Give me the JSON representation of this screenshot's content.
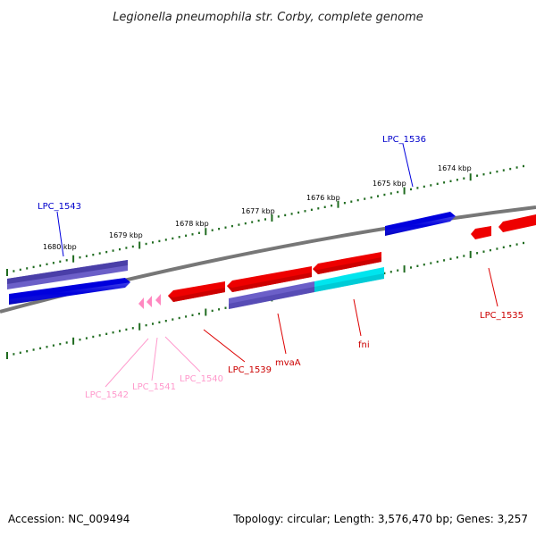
{
  "title": "Legionella pneumophila str. Corby, complete genome",
  "footer": {
    "accession": "Accession: NC_009494",
    "summary": "Topology: circular; Length: 3,576,470 bp; Genes: 3,257"
  },
  "colors": {
    "backbone": "#7a7a7a",
    "tick": "#1f6b1f",
    "forward_gene": "#0000dd",
    "forward_gene_alt": "#6b5fc8",
    "reverse_gene": "#ee0000",
    "pseudo_gene": "#ff88c0",
    "cyan_gene": "#00e5ee"
  },
  "scale_labels": [
    {
      "id": "kbp-1680",
      "text": "1680 kbp"
    },
    {
      "id": "kbp-1679",
      "text": "1679 kbp"
    },
    {
      "id": "kbp-1678",
      "text": "1678 kbp"
    },
    {
      "id": "kbp-1677",
      "text": "1677 kbp"
    },
    {
      "id": "kbp-1676",
      "text": "1676 kbp"
    },
    {
      "id": "kbp-1675",
      "text": "1675 kbp"
    },
    {
      "id": "kbp-1674",
      "text": "1674 kbp"
    }
  ],
  "gene_labels": {
    "lpc1543": "LPC_1543",
    "lpc1536": "LPC_1536",
    "lpc1535": "LPC_1535",
    "fni": "fni",
    "mvaA": "mvaA",
    "lpc1539": "LPC_1539",
    "lpc1540": "LPC_1540",
    "lpc1541": "LPC_1541",
    "lpc1542": "LPC_1542"
  }
}
